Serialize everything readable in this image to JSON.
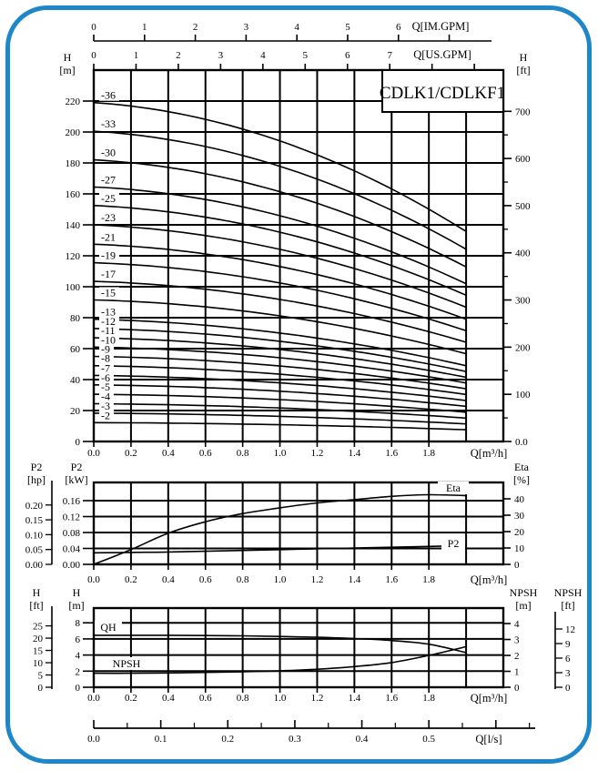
{
  "colors": {
    "frame": "#1e87c7",
    "ink": "#000000",
    "background": "#ffffff"
  },
  "ls_axis": {
    "unit_label": "Q[l/s]",
    "tick_labels": [
      "0.0",
      "0.1",
      "0.2",
      "0.3",
      "0.4",
      "0.5"
    ]
  },
  "chart_data": [
    {
      "type": "line",
      "title": "CDLK1/CDLKF1",
      "xlabel": "Q[m³/h]",
      "ylabel_left": [
        "H",
        "[m]"
      ],
      "ylabel_right": [
        "H",
        "[ft]"
      ],
      "xlim": [
        0,
        2.2
      ],
      "ylim_m": [
        0,
        240
      ],
      "x_tick_labels": [
        "0.0",
        "0.2",
        "0.4",
        "0.6",
        "0.8",
        "1.0",
        "1.2",
        "1.4",
        "1.6",
        "1.8"
      ],
      "y_tick_labels_m": [
        "0",
        "20",
        "40",
        "60",
        "80",
        "100",
        "120",
        "140",
        "160",
        "180",
        "200",
        "220"
      ],
      "y_tick_labels_ft": [
        "0.0",
        "100",
        "200",
        "300",
        "400",
        "500",
        "600",
        "700"
      ],
      "top_axes": {
        "im": {
          "unit_label": "Q[IM.GPM]",
          "tick_labels": [
            "0",
            "1",
            "2",
            "3",
            "4",
            "5",
            "6"
          ],
          "m3h_per_gpm": 0.27276
        },
        "us": {
          "unit_label": "Q[US.GPM]",
          "tick_labels": [
            "0",
            "1",
            "2",
            "3",
            "4",
            "5",
            "6",
            "7"
          ],
          "m3h_per_gpm": 0.22712
        }
      },
      "droop": {
        "a": 0.22,
        "b": 0.47,
        "ref": 6.1
      },
      "curve_q_end": 2.0,
      "series": [
        {
          "label": "-36",
          "h0": 219
        },
        {
          "label": "-33",
          "h0": 200.5
        },
        {
          "label": "-30",
          "h0": 182
        },
        {
          "label": "-27",
          "h0": 164.5
        },
        {
          "label": "-25",
          "h0": 152.5
        },
        {
          "label": "-23",
          "h0": 140
        },
        {
          "label": "-21",
          "h0": 127.5
        },
        {
          "label": "-19",
          "h0": 115.5
        },
        {
          "label": "-17",
          "h0": 103.5
        },
        {
          "label": "-15",
          "h0": 91.5
        },
        {
          "label": "-13",
          "h0": 79
        },
        {
          "label": "-12",
          "h0": 73
        },
        {
          "label": "-11",
          "h0": 67
        },
        {
          "label": "-10",
          "h0": 61
        },
        {
          "label": "-9",
          "h0": 55
        },
        {
          "label": "-8",
          "h0": 49
        },
        {
          "label": "-7",
          "h0": 42.7
        },
        {
          "label": "-6",
          "h0": 36.6
        },
        {
          "label": "-5",
          "h0": 30.5
        },
        {
          "label": "-4",
          "h0": 24.4
        },
        {
          "label": "-3",
          "h0": 18.3
        },
        {
          "label": "-2",
          "h0": 12.2
        }
      ]
    },
    {
      "type": "line",
      "xlabel": "Q[m³/h]",
      "ylabel_hp": [
        "P2",
        "[hp]"
      ],
      "ylabel_kw": [
        "P2",
        "[kW]"
      ],
      "ylabel_pct": [
        "Eta",
        "[%]"
      ],
      "x": [
        0,
        0.2,
        0.4,
        0.6,
        0.8,
        1.0,
        1.2,
        1.4,
        1.6,
        1.8,
        2.0
      ],
      "x_tick_labels": [
        "0.0",
        "0.2",
        "0.4",
        "0.6",
        "0.8",
        "1.0",
        "1.2",
        "1.4",
        "1.6",
        "1.8"
      ],
      "kw_tick_labels": [
        "0.00",
        "0.04",
        "0.08",
        "0.12",
        "0.16"
      ],
      "hp_tick_labels": [
        "0.00",
        "0.05",
        "0.10",
        "0.15",
        "0.20"
      ],
      "pct_tick_labels": [
        "0",
        "10",
        "20",
        "30",
        "40"
      ],
      "series": [
        {
          "name": "Eta",
          "axis": "pct",
          "values": [
            0,
            9,
            19,
            26,
            31,
            34.5,
            37.5,
            39.5,
            41.5,
            42.5,
            42
          ]
        },
        {
          "name": "P2",
          "axis": "kw",
          "values": [
            0.029,
            0.03,
            0.031,
            0.033,
            0.035,
            0.037,
            0.039,
            0.041,
            0.043,
            0.045,
            0.047
          ]
        }
      ]
    },
    {
      "type": "line",
      "xlabel": "Q[m³/h]",
      "ylabel_ft": [
        "H",
        "[ft]"
      ],
      "ylabel_m": [
        "H",
        "[m]"
      ],
      "ylabel_npsh_m": [
        "NPSH",
        "[m]"
      ],
      "ylabel_npsh_ft": [
        "NPSH",
        "[ft]"
      ],
      "x": [
        0,
        0.2,
        0.4,
        0.6,
        0.8,
        1.0,
        1.2,
        1.4,
        1.6,
        1.8,
        2.0
      ],
      "x_tick_labels": [
        "0.0",
        "0.2",
        "0.4",
        "0.6",
        "0.8",
        "1.0",
        "1.2",
        "1.4",
        "1.6",
        "1.8"
      ],
      "m_tick_labels": [
        "0",
        "2",
        "4",
        "6",
        "8"
      ],
      "ft_tick_labels": [
        "0",
        "5",
        "10",
        "15",
        "20",
        "25"
      ],
      "npsh_m_tick_labels": [
        "0",
        "1",
        "2",
        "3",
        "4"
      ],
      "npsh_ft_tick_labels": [
        "0",
        "3",
        "6",
        "9",
        "12"
      ],
      "series": [
        {
          "name": "QH",
          "axis": "m",
          "values": [
            6.45,
            6.45,
            6.45,
            6.42,
            6.38,
            6.3,
            6.2,
            6.05,
            5.8,
            5.35,
            4.3
          ]
        },
        {
          "name": "NPSH",
          "axis": "npsh_m",
          "values": [
            0.88,
            0.88,
            0.9,
            0.93,
            0.97,
            1.03,
            1.13,
            1.3,
            1.55,
            2.0,
            2.55
          ]
        }
      ]
    }
  ]
}
